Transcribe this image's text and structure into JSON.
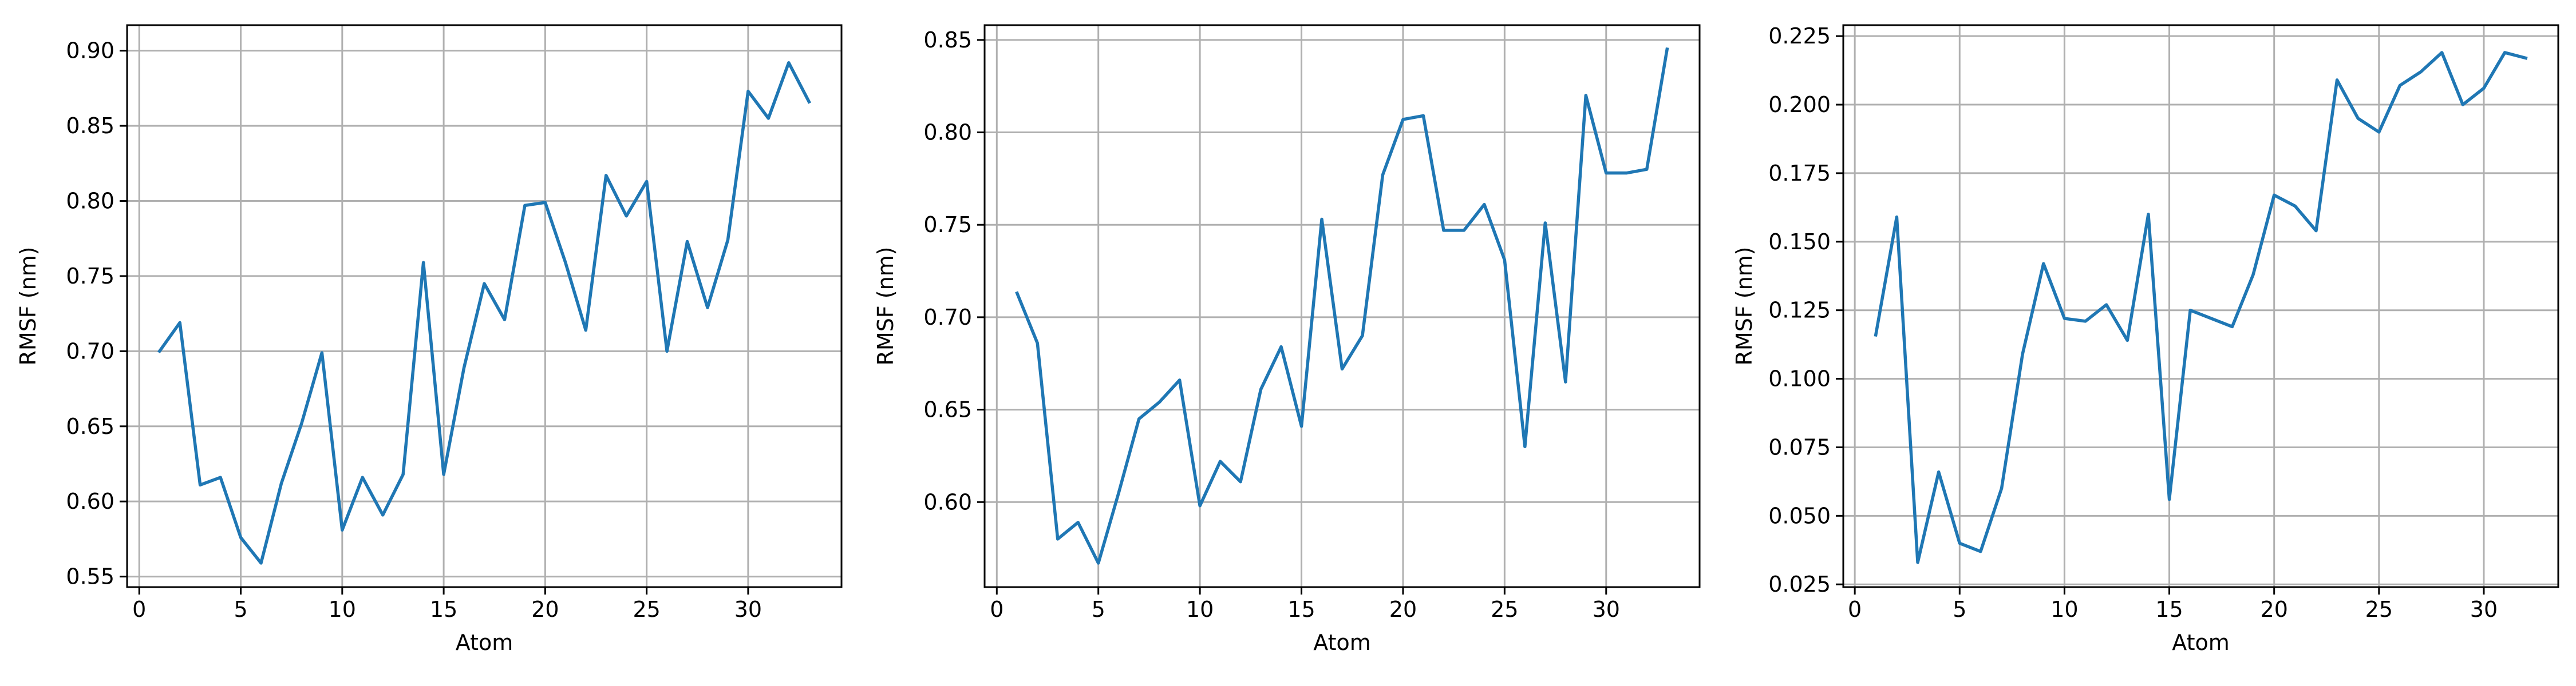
{
  "figure": {
    "background": "#ffffff",
    "grid_color": "#b0b0b0",
    "line_color": "#1f77b4"
  },
  "chart_data": [
    {
      "type": "line",
      "xlabel": "Atom",
      "ylabel": "RMSF (nm)",
      "grid": true,
      "xlim": [
        -0.6,
        34.6
      ],
      "ylim": [
        0.543,
        0.917
      ],
      "xticks": [
        0,
        5,
        10,
        15,
        20,
        25,
        30
      ],
      "xtick_labels": [
        "0",
        "5",
        "10",
        "15",
        "20",
        "25",
        "30"
      ],
      "yticks": [
        0.55,
        0.6,
        0.65,
        0.7,
        0.75,
        0.8,
        0.85,
        0.9
      ],
      "ytick_labels": [
        "0.55",
        "0.60",
        "0.65",
        "0.70",
        "0.75",
        "0.80",
        "0.85",
        "0.90"
      ],
      "series": [
        {
          "x": [
            1,
            2,
            3,
            4,
            5,
            6,
            7,
            8,
            9,
            10,
            11,
            12,
            13,
            14,
            15,
            16,
            17,
            18,
            19,
            20,
            21,
            22,
            23,
            24,
            25,
            26,
            27,
            28,
            29,
            30,
            31,
            32,
            33
          ],
          "values": [
            0.7,
            0.719,
            0.611,
            0.616,
            0.576,
            0.559,
            0.612,
            0.652,
            0.699,
            0.581,
            0.616,
            0.591,
            0.618,
            0.759,
            0.618,
            0.689,
            0.745,
            0.721,
            0.797,
            0.799,
            0.759,
            0.714,
            0.817,
            0.79,
            0.813,
            0.7,
            0.773,
            0.729,
            0.774,
            0.873,
            0.855,
            0.892,
            0.866
          ]
        }
      ]
    },
    {
      "type": "line",
      "xlabel": "Atom",
      "ylabel": "RMSF (nm)",
      "grid": true,
      "xlim": [
        -0.6,
        34.6
      ],
      "ylim": [
        0.554,
        0.858
      ],
      "xticks": [
        0,
        5,
        10,
        15,
        20,
        25,
        30
      ],
      "xtick_labels": [
        "0",
        "5",
        "10",
        "15",
        "20",
        "25",
        "30"
      ],
      "yticks": [
        0.6,
        0.65,
        0.7,
        0.75,
        0.8,
        0.85
      ],
      "ytick_labels": [
        "0.60",
        "0.65",
        "0.70",
        "0.75",
        "0.80",
        "0.85"
      ],
      "series": [
        {
          "x": [
            1,
            2,
            3,
            4,
            5,
            6,
            7,
            8,
            9,
            10,
            11,
            12,
            13,
            14,
            15,
            16,
            17,
            18,
            19,
            20,
            21,
            22,
            23,
            24,
            25,
            26,
            27,
            28,
            29,
            30,
            31,
            32,
            33
          ],
          "values": [
            0.713,
            0.686,
            0.58,
            0.589,
            0.567,
            0.605,
            0.645,
            0.654,
            0.666,
            0.598,
            0.622,
            0.611,
            0.661,
            0.684,
            0.641,
            0.753,
            0.672,
            0.69,
            0.777,
            0.807,
            0.809,
            0.747,
            0.747,
            0.761,
            0.731,
            0.63,
            0.751,
            0.665,
            0.82,
            0.778,
            0.778,
            0.78,
            0.845
          ]
        }
      ]
    },
    {
      "type": "line",
      "xlabel": "Atom",
      "ylabel": "RMSF (nm)",
      "grid": true,
      "xlim": [
        -0.55,
        33.55
      ],
      "ylim": [
        0.024,
        0.229
      ],
      "xticks": [
        0,
        5,
        10,
        15,
        20,
        25,
        30
      ],
      "xtick_labels": [
        "0",
        "5",
        "10",
        "15",
        "20",
        "25",
        "30"
      ],
      "yticks": [
        0.025,
        0.05,
        0.075,
        0.1,
        0.125,
        0.15,
        0.175,
        0.2,
        0.225
      ],
      "ytick_labels": [
        "0.025",
        "0.050",
        "0.075",
        "0.100",
        "0.125",
        "0.150",
        "0.175",
        "0.200",
        "0.225"
      ],
      "series": [
        {
          "x": [
            1,
            2,
            3,
            4,
            5,
            6,
            7,
            8,
            9,
            10,
            11,
            12,
            13,
            14,
            15,
            16,
            17,
            18,
            19,
            20,
            21,
            22,
            23,
            24,
            25,
            26,
            27,
            28,
            29,
            30,
            31,
            32
          ],
          "values": [
            0.116,
            0.159,
            0.033,
            0.066,
            0.04,
            0.037,
            0.06,
            0.109,
            0.142,
            0.122,
            0.121,
            0.127,
            0.114,
            0.16,
            0.056,
            0.125,
            0.122,
            0.119,
            0.138,
            0.167,
            0.163,
            0.154,
            0.209,
            0.195,
            0.19,
            0.207,
            0.212,
            0.219,
            0.2,
            0.206,
            0.219,
            0.217
          ]
        }
      ]
    }
  ]
}
